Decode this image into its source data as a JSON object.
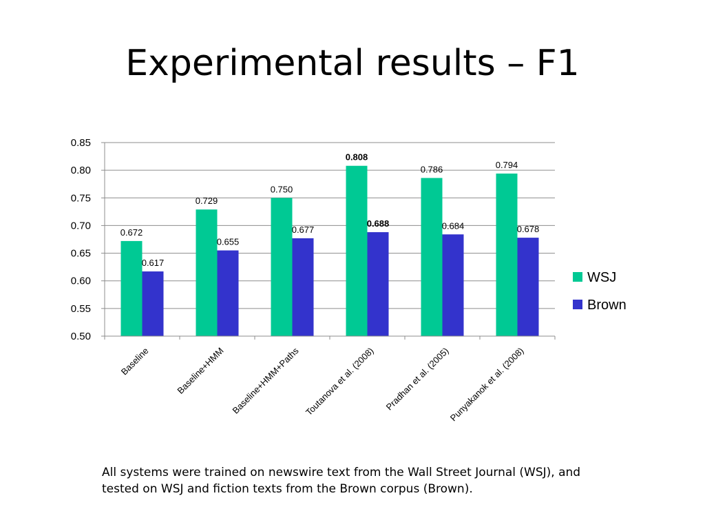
{
  "slide": {
    "title": "Experimental results – F1",
    "caption": "All systems were trained on newswire text from the Wall Street Journal (WSJ), and tested on WSJ and fiction texts from the Brown corpus (Brown)."
  },
  "chart_data": {
    "type": "bar",
    "title": "",
    "xlabel": "",
    "ylabel": "",
    "ylim": [
      0.5,
      0.85
    ],
    "yticks": [
      "0.50",
      "0.55",
      "0.60",
      "0.65",
      "0.70",
      "0.75",
      "0.80",
      "0.85"
    ],
    "grid": true,
    "legend_position": "right",
    "categories": [
      "Baseline",
      "Baseline+HMM",
      "Baseline+HMM+Paths",
      "Toutanova et al. (2008)",
      "Pradhan et al. (2005)",
      "Punyakanok et al. (2008)"
    ],
    "series": [
      {
        "name": "WSJ",
        "color": "#00c994",
        "values": [
          0.672,
          0.729,
          0.75,
          0.808,
          0.786,
          0.794
        ],
        "labels": [
          "0.672",
          "0.729",
          "0.750",
          "0.808",
          "0.786",
          "0.794"
        ],
        "bold_labels": [
          false,
          false,
          false,
          true,
          false,
          false
        ]
      },
      {
        "name": "Brown",
        "color": "#3333cc",
        "values": [
          0.617,
          0.655,
          0.677,
          0.688,
          0.684,
          0.678
        ],
        "labels": [
          "0.617",
          "0.655",
          "0.677",
          "0.688",
          "0.684",
          "0.678"
        ],
        "bold_labels": [
          false,
          false,
          false,
          true,
          false,
          false
        ]
      }
    ]
  }
}
